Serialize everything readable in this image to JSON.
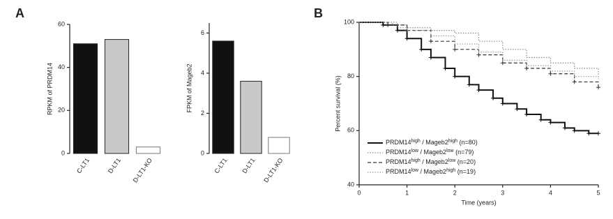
{
  "panel_labels": [
    "A",
    "B"
  ],
  "chart_data": [
    {
      "type": "bar",
      "ylabel": "RPKM of PRDM14",
      "categories": [
        "C-LT1",
        "D-LT1",
        "D-LT1-KO"
      ],
      "values": [
        51,
        53,
        3
      ],
      "colors": [
        "#111111",
        "#c8c8c8",
        "#ffffff"
      ],
      "ylim": [
        0,
        60
      ],
      "yticks": [
        0,
        20,
        40,
        60
      ]
    },
    {
      "type": "bar",
      "ylabel": "FPKM of Mageb2",
      "categories": [
        "C-LT1",
        "D-LT1",
        "D-LT1-KO"
      ],
      "values": [
        5.6,
        3.6,
        0.8
      ],
      "colors": [
        "#111111",
        "#c8c8c8",
        "#ffffff"
      ],
      "ylim": [
        0,
        6.5
      ],
      "yticks": [
        0,
        2,
        4,
        6
      ]
    },
    {
      "type": "survival",
      "xlabel": "Time (years)",
      "ylabel": "Percent survival (%)",
      "xlim": [
        0,
        5
      ],
      "xticks": [
        0,
        1,
        2,
        3,
        4,
        5
      ],
      "ylim": [
        40,
        100
      ],
      "yticks": [
        40,
        60,
        80,
        100
      ],
      "series": [
        {
          "name": [
            "PRDM14",
            "high",
            " / Mageb2",
            "high",
            " (n=80)"
          ],
          "color": "#111111",
          "dash": "solid",
          "marker": true,
          "x": [
            0,
            0.5,
            0.8,
            1,
            1.3,
            1.5,
            1.8,
            2,
            2.3,
            2.5,
            2.8,
            3,
            3.3,
            3.5,
            3.8,
            4,
            4.3,
            4.5,
            4.8,
            5
          ],
          "values": [
            100,
            99,
            97,
            94,
            90,
            87,
            83,
            80,
            77,
            75,
            72,
            70,
            68,
            66,
            64,
            63,
            61,
            60,
            59,
            59
          ]
        },
        {
          "name": [
            "PRDM14",
            "low",
            " / Mageb2",
            "low",
            " (n=79)"
          ],
          "color": "#888888",
          "dash": "dotted",
          "marker": false,
          "x": [
            0,
            0.7,
            1,
            1.5,
            2,
            2.5,
            3,
            3.5,
            4,
            4.5,
            5
          ],
          "values": [
            100,
            99,
            98,
            97,
            96,
            93,
            90,
            87,
            85,
            83,
            80
          ]
        },
        {
          "name": [
            "PRDM14",
            "high",
            " / Mageb2",
            "low",
            " (n=20)"
          ],
          "color": "#333333",
          "dash": "dashed",
          "marker": true,
          "x": [
            0,
            0.6,
            1,
            1.5,
            2,
            2.5,
            3,
            3.5,
            4,
            4.5,
            5
          ],
          "values": [
            100,
            99,
            97,
            93,
            90,
            88,
            85,
            83,
            81,
            78,
            76
          ]
        },
        {
          "name": [
            "PRDM14",
            "low",
            " / Mageb2",
            "high",
            " (n=19)"
          ],
          "color": "#999999",
          "dash": "dotted",
          "marker": false,
          "x": [
            0,
            0.8,
            1,
            1.5,
            2,
            2.5,
            3,
            3.5,
            4,
            4.5,
            5
          ],
          "values": [
            100,
            98,
            97,
            95,
            92,
            89,
            86,
            84,
            82,
            80,
            79
          ]
        }
      ]
    }
  ]
}
